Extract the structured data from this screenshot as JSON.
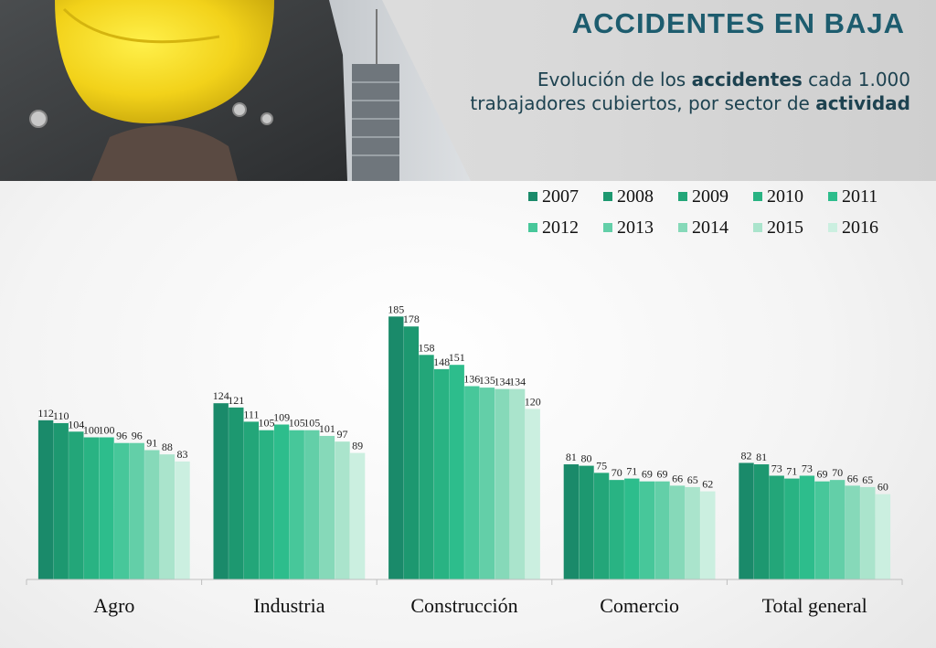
{
  "header": {
    "title": "ACCIDENTES EN BAJA",
    "subtitle_parts": [
      "Evolución de los ",
      "accidentes",
      " cada 1.000 trabajadores cubiertos, por sector de ",
      "actividad"
    ]
  },
  "chart_data": {
    "type": "bar",
    "categories": [
      "Agro",
      "Industria",
      "Construcción",
      "Comercio",
      "Total general"
    ],
    "series": [
      {
        "name": "2007",
        "color": "#1a8a6a",
        "values": [
          112,
          124,
          185,
          81,
          82
        ]
      },
      {
        "name": "2008",
        "color": "#1d9870",
        "values": [
          110,
          121,
          178,
          80,
          81
        ]
      },
      {
        "name": "2009",
        "color": "#23a679",
        "values": [
          104,
          111,
          158,
          75,
          73
        ]
      },
      {
        "name": "2010",
        "color": "#29b383",
        "values": [
          100,
          105,
          148,
          70,
          71
        ]
      },
      {
        "name": "2011",
        "color": "#2dbd8c",
        "values": [
          100,
          109,
          151,
          71,
          73
        ]
      },
      {
        "name": "2012",
        "color": "#47c79a",
        "values": [
          96,
          105,
          136,
          69,
          69
        ]
      },
      {
        "name": "2013",
        "color": "#63cfa8",
        "values": [
          96,
          105,
          135,
          69,
          70
        ]
      },
      {
        "name": "2014",
        "color": "#86d9b9",
        "values": [
          91,
          101,
          134,
          66,
          66
        ]
      },
      {
        "name": "2015",
        "color": "#aae4cc",
        "values": [
          88,
          97,
          134,
          65,
          65
        ]
      },
      {
        "name": "2016",
        "color": "#cbefe0",
        "values": [
          83,
          89,
          120,
          62,
          60
        ]
      }
    ],
    "ylim": [
      0,
      200
    ],
    "legend": "top-right",
    "grid": false
  }
}
